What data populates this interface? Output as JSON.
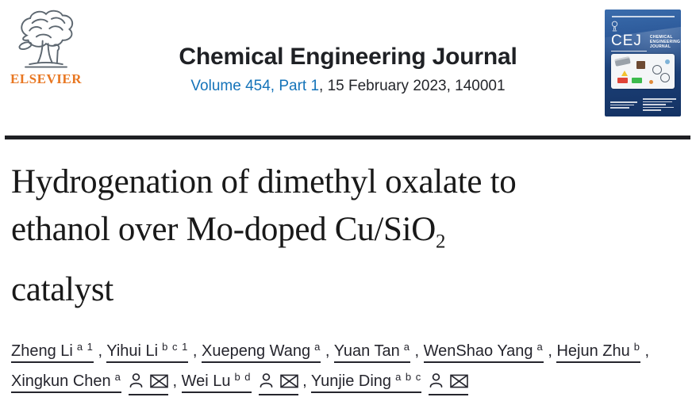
{
  "banner": {
    "publisher": "ELSEVIER",
    "journal_title": "Chemical Engineering Journal",
    "volume_link": "Volume 454, Part 1",
    "issue_rest": ", 15 February 2023, 140001",
    "cover": {
      "abbrev": "CEJ",
      "name_lines": [
        "CHEMICAL",
        "ENGINEERING",
        "JOURNAL"
      ]
    }
  },
  "article": {
    "title_line1": "Hydrogenation of dimethyl oxalate to",
    "title_line2": "ethanol over Mo-doped Cu/SiO",
    "title_line2_sub": "2",
    "title_line3": "catalyst"
  },
  "author_separator": ", ",
  "authors": [
    {
      "name": "Zheng Li",
      "sup": "a 1",
      "contact": false
    },
    {
      "name": "Yihui Li",
      "sup": "b c 1",
      "contact": false
    },
    {
      "name": "Xuepeng Wang",
      "sup": "a",
      "contact": false
    },
    {
      "name": "Yuan Tan",
      "sup": "a",
      "contact": false
    },
    {
      "name": "WenShao Yang",
      "sup": "a",
      "contact": false
    },
    {
      "name": "Hejun Zhu",
      "sup": "b",
      "contact": false
    },
    {
      "name": "Xingkun Chen",
      "sup": "a",
      "contact": true
    },
    {
      "name": "Wei Lu",
      "sup": "b d",
      "contact": true
    },
    {
      "name": "Yunjie Ding",
      "sup": "a b c",
      "contact": true
    }
  ],
  "colors": {
    "link_blue": "#1473b9",
    "elsevier_orange": "#e87722",
    "text_dark": "#25252d",
    "cover_blue": "#1b4078"
  }
}
